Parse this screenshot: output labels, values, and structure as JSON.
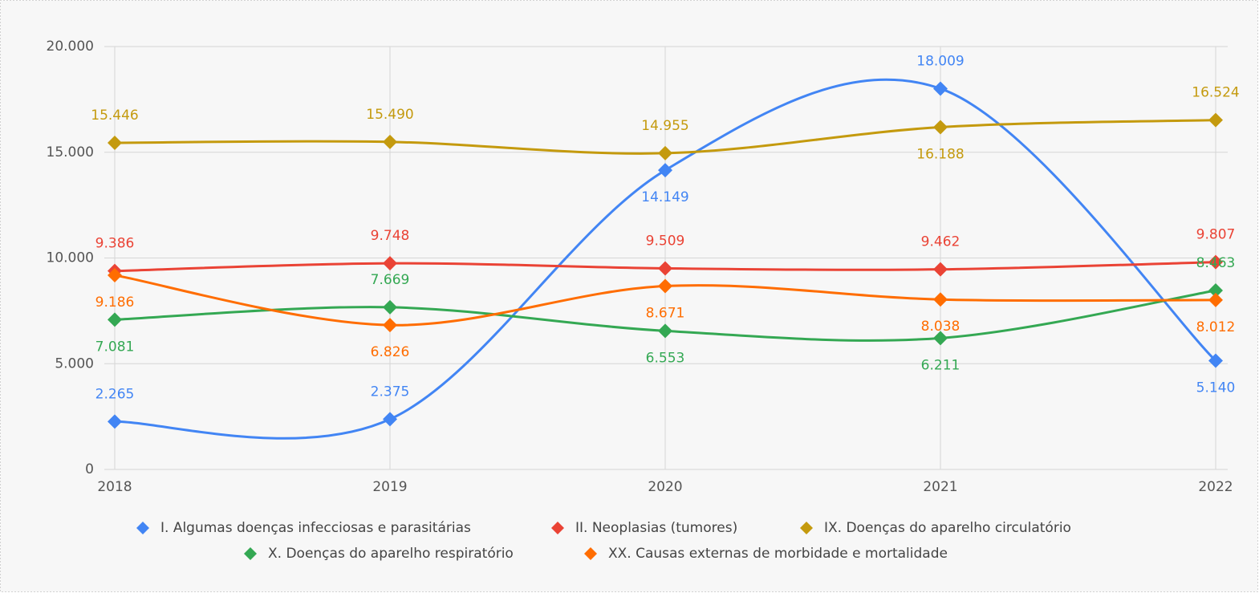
{
  "chart_data": {
    "type": "line",
    "curve": "smooth",
    "categories": [
      "2018",
      "2019",
      "2020",
      "2021",
      "2022"
    ],
    "ylim": [
      0,
      20000
    ],
    "yticks": [
      0,
      {
        "value": 5000,
        "label": "5.000"
      },
      {
        "value": 10000,
        "label": "10.000"
      },
      {
        "value": 15000,
        "label": "15.000"
      },
      {
        "value": 20000,
        "label": "20.000"
      }
    ],
    "grid": true,
    "legend": "bottom",
    "series": [
      {
        "name": "I. Algumas doenças infecciosas e parasitárias",
        "color": "#4285f4",
        "values": [
          2265,
          2375,
          14149,
          18009,
          5140
        ],
        "value_labels": [
          "2.265",
          "2.375",
          "14.149",
          "18.009",
          "5.140"
        ]
      },
      {
        "name": "II. Neoplasias (tumores)",
        "color": "#ea4335",
        "values": [
          9386,
          9748,
          9509,
          9462,
          9807
        ],
        "value_labels": [
          "9.386",
          "9.748",
          "9.509",
          "9.462",
          "9.807"
        ]
      },
      {
        "name": "IX. Doenças do aparelho circulatório",
        "color": "#c49a0e",
        "values": [
          15446,
          15490,
          14955,
          16188,
          16524
        ],
        "value_labels": [
          "15.446",
          "15.490",
          "14.955",
          "16.188",
          "16.524"
        ]
      },
      {
        "name": "X. Doenças do aparelho respiratório",
        "color": "#34a853",
        "values": [
          7081,
          7669,
          6553,
          6211,
          8463
        ],
        "value_labels": [
          "7.081",
          "7.669",
          "6.553",
          "6.211",
          "8.463"
        ]
      },
      {
        "name": "XX. Causas externas de morbidade e mortalidade",
        "color": "#ff6d01",
        "values": [
          9186,
          6826,
          8671,
          8038,
          8012
        ],
        "value_labels": [
          "9.186",
          "6.826",
          "8.671",
          "8.038",
          "8.012"
        ]
      }
    ]
  }
}
